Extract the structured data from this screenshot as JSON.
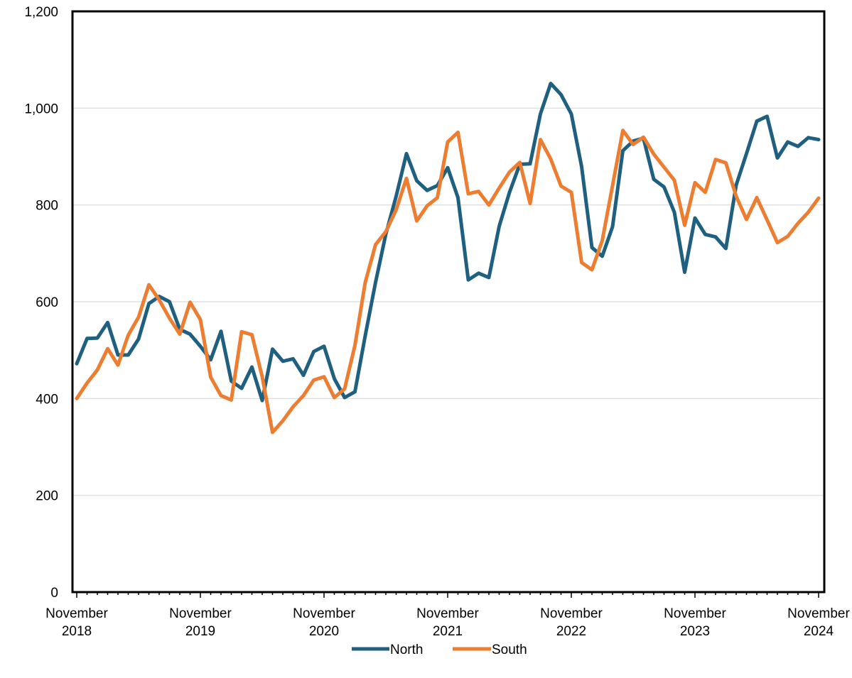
{
  "chart_data": {
    "type": "line",
    "title": "",
    "xlabel": "",
    "ylabel": "",
    "ylim": [
      0,
      1200
    ],
    "y_ticks": [
      "0",
      "200",
      "400",
      "600",
      "800",
      "1,000",
      "1,200"
    ],
    "x_start": "2018-11",
    "x_ticks": [
      {
        "line1": "November",
        "line2": "2018"
      },
      {
        "line1": "November",
        "line2": "2019"
      },
      {
        "line1": "November",
        "line2": "2020"
      },
      {
        "line1": "November",
        "line2": "2021"
      },
      {
        "line1": "November",
        "line2": "2022"
      },
      {
        "line1": "November",
        "line2": "2023"
      },
      {
        "line1": "November",
        "line2": "2024"
      }
    ],
    "grid": "horizontal",
    "legend_position": "bottom-center",
    "series": [
      {
        "name": "North",
        "color": "#1f5f7f",
        "values": [
          472,
          524,
          525,
          557,
          490,
          490,
          523,
          596,
          611,
          600,
          543,
          533,
          508,
          480,
          539,
          436,
          421,
          465,
          396,
          502,
          477,
          482,
          448,
          497,
          508,
          441,
          402,
          414,
          530,
          640,
          740,
          818,
          906,
          850,
          830,
          840,
          877,
          815,
          645,
          659,
          650,
          756,
          826,
          884,
          885,
          988,
          1051,
          1028,
          988,
          879,
          712,
          694,
          755,
          912,
          932,
          938,
          853,
          837,
          785,
          661,
          773,
          739,
          734,
          710,
          841,
          906,
          973,
          983,
          897,
          930,
          921,
          939,
          935
        ]
      },
      {
        "name": "South",
        "color": "#ed7d31",
        "values": [
          400,
          432,
          459,
          503,
          469,
          531,
          568,
          635,
          604,
          566,
          533,
          599,
          563,
          444,
          406,
          397,
          538,
          532,
          445,
          330,
          354,
          383,
          406,
          438,
          445,
          402,
          420,
          510,
          640,
          718,
          745,
          790,
          855,
          767,
          798,
          815,
          930,
          950,
          823,
          828,
          800,
          835,
          868,
          888,
          803,
          935,
          895,
          839,
          826,
          681,
          666,
          726,
          840,
          954,
          925,
          940,
          905,
          878,
          851,
          758,
          846,
          826,
          894,
          887,
          818,
          770,
          815,
          769,
          722,
          735,
          762,
          785,
          814
        ]
      }
    ]
  }
}
